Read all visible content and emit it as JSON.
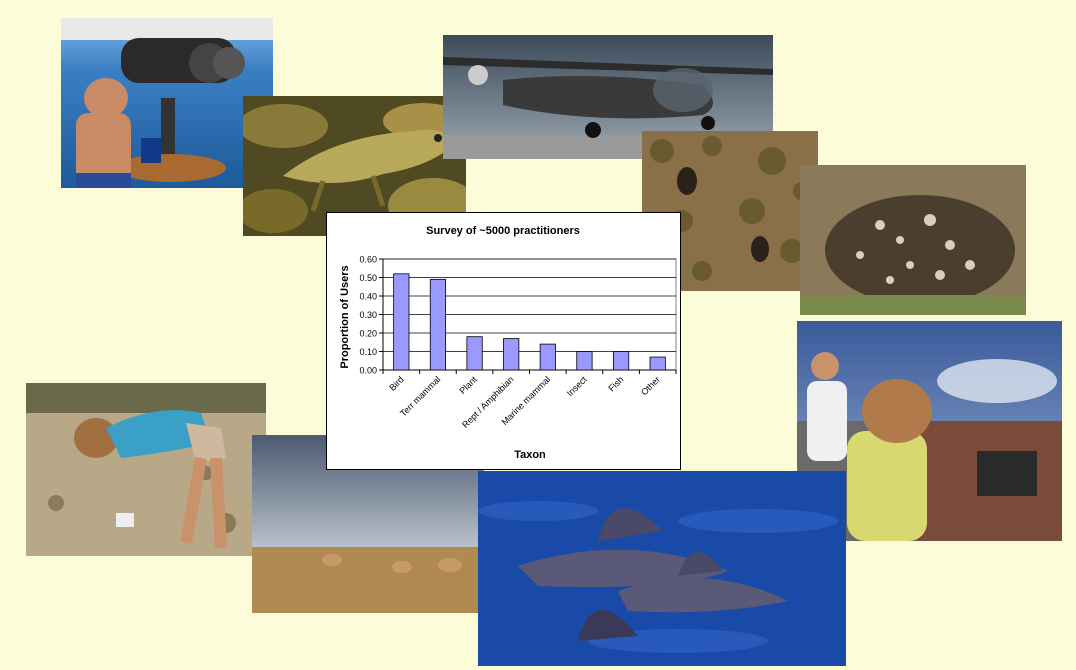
{
  "chart_data": {
    "type": "bar",
    "title": "Survey of ~5000 practitioners",
    "xlabel": "Taxon",
    "ylabel": "Proportion of Users",
    "categories": [
      "Bird",
      "Terr mammal",
      "Plant",
      "Rept / Amphibian",
      "Marine mammal",
      "Insect",
      "Fish",
      "Other"
    ],
    "values": [
      0.52,
      0.49,
      0.18,
      0.17,
      0.14,
      0.1,
      0.1,
      0.07
    ],
    "ylim": [
      0,
      0.6
    ],
    "yticks": [
      "0.00",
      "0.10",
      "0.20",
      "0.30",
      "0.40",
      "0.50",
      "0.60"
    ],
    "grid": true,
    "legend": "none",
    "bar_color": "#9999ff",
    "plot_background": "#ffffff"
  },
  "photos": [
    {
      "name": "photo-binocular-observer",
      "subject": "man using large binoculars on boat"
    },
    {
      "name": "photo-chameleon",
      "subject": "chameleon on leaves"
    },
    {
      "name": "photo-aircraft",
      "subject": "small survey aircraft on runway"
    },
    {
      "name": "photo-aerial-animals",
      "subject": "animals seen from above in scrub"
    },
    {
      "name": "photo-bird-camouflage",
      "subject": "camouflaged bird on nest"
    },
    {
      "name": "photo-field-researcher",
      "subject": "researcher bending over field plot"
    },
    {
      "name": "photo-pronghorn",
      "subject": "pronghorn on grassland"
    },
    {
      "name": "photo-dolphins",
      "subject": "dolphin fins in ocean"
    },
    {
      "name": "photo-boat-observers",
      "subject": "observers with laptop on boat deck"
    }
  ],
  "colors": {
    "background": "#fcfcd8"
  }
}
